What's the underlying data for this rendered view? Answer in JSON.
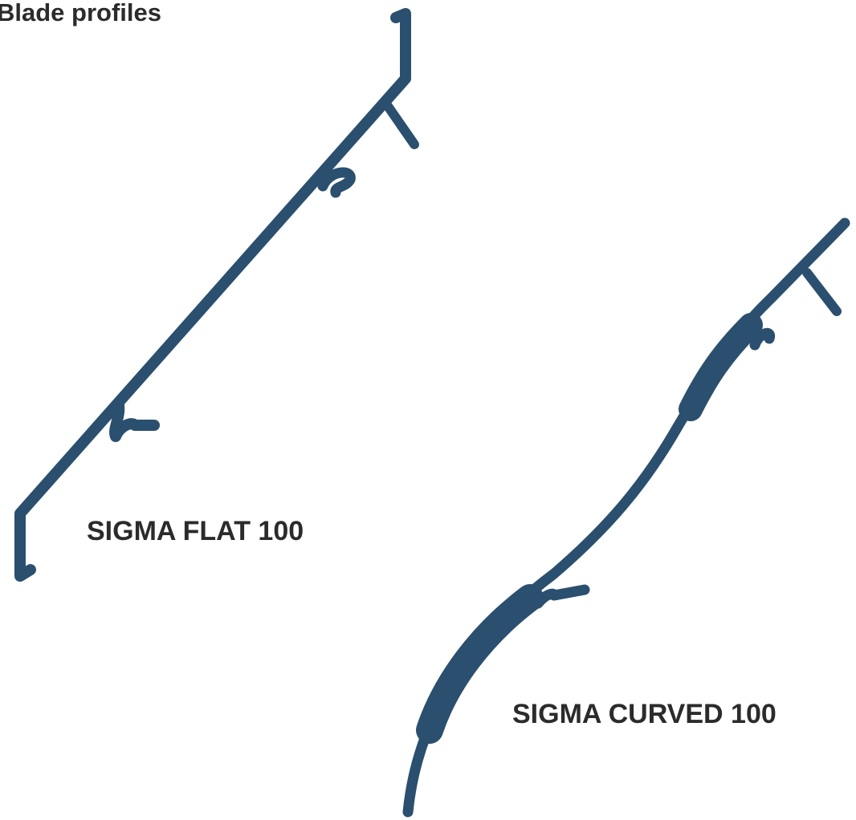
{
  "title": "Blade profiles",
  "profiles": [
    {
      "label": "SIGMA FLAT 100"
    },
    {
      "label": "SIGMA CURVED 100"
    }
  ]
}
